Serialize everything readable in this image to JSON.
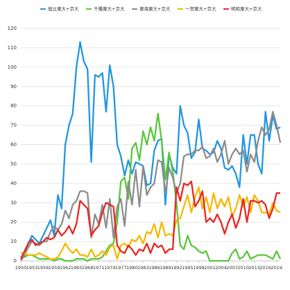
{
  "chart_data": {
    "type": "line",
    "x": [
      1950,
      1951,
      1952,
      1953,
      1954,
      1955,
      1956,
      1957,
      1958,
      1959,
      1960,
      1961,
      1962,
      1963,
      1964,
      1965,
      1966,
      1967,
      1968,
      1969,
      1970,
      1971,
      1972,
      1973,
      1974,
      1975,
      1976,
      1977,
      1978,
      1979,
      1980,
      1981,
      1982,
      1983,
      1984,
      1985,
      1986,
      1987,
      1988,
      1989,
      1990,
      1991,
      1992,
      1993,
      1994,
      1995,
      1996,
      1997,
      1998,
      1999,
      2000,
      2001,
      2002,
      2003,
      2004,
      2005,
      2006,
      2007,
      2008,
      2009,
      2010,
      2011,
      2012,
      2013,
      2014,
      2015,
      2016,
      2017,
      2018,
      2019,
      2020
    ],
    "xlim": [
      1950,
      2020
    ],
    "xticks": [
      1950,
      1953,
      1956,
      1959,
      1962,
      1965,
      1968,
      1971,
      1974,
      1977,
      1980,
      1983,
      1986,
      1989,
      1992,
      1995,
      1998,
      2001,
      2004,
      2007,
      2010,
      2013,
      2016,
      2019
    ],
    "ylim": [
      0,
      120
    ],
    "yticks": [
      0,
      10,
      20,
      30,
      40,
      50,
      60,
      70,
      80,
      90,
      100,
      110,
      120
    ],
    "grid": true,
    "legend": "top",
    "series": [
      {
        "name": "旭丘東大+京大",
        "color": "#2196e0",
        "values": [
          2,
          3,
          9,
          13,
          11,
          9,
          13,
          17,
          21,
          13,
          34,
          27,
          60,
          70,
          76,
          100,
          113,
          103,
          99,
          51,
          96,
          95,
          97,
          77,
          101,
          90,
          60,
          54,
          44,
          52,
          45,
          51,
          50,
          49,
          39,
          40,
          57,
          62,
          63,
          29,
          55,
          48,
          45,
          80,
          70,
          66,
          53,
          56,
          73,
          58,
          57,
          55,
          56,
          62,
          58,
          48,
          47,
          49,
          45,
          38,
          65,
          50,
          65,
          65,
          50,
          45,
          77,
          62,
          75,
          68,
          69
        ]
      },
      {
        "name": "千種東大+京大",
        "color": "#5ac63a",
        "values": [
          1,
          2,
          3,
          3,
          2,
          1,
          1,
          1,
          1,
          0,
          1,
          1,
          0,
          0,
          0,
          1,
          1,
          1,
          0,
          1,
          1,
          1,
          2,
          5,
          8,
          9,
          20,
          41,
          43,
          32,
          58,
          61,
          52,
          67,
          60,
          69,
          62,
          76,
          62,
          42,
          56,
          46,
          30,
          8,
          6,
          13,
          8,
          7,
          5,
          4,
          5,
          0,
          0,
          0,
          0,
          0,
          0,
          4,
          6,
          1,
          2,
          5,
          1,
          2,
          3,
          3,
          3,
          2,
          1,
          5,
          1
        ]
      },
      {
        "name": "東海東大+京大",
        "color": "#8c8c8c",
        "values": [
          0,
          3,
          7,
          10,
          9,
          8,
          10,
          10,
          15,
          18,
          16,
          19,
          26,
          22,
          29,
          31,
          36,
          36,
          35,
          12,
          24,
          19,
          29,
          17,
          32,
          12,
          28,
          32,
          18,
          41,
          29,
          47,
          28,
          49,
          34,
          38,
          40,
          52,
          51,
          35,
          48,
          43,
          35,
          40,
          54,
          55,
          55,
          57,
          57,
          59,
          53,
          54,
          58,
          51,
          55,
          62,
          50,
          55,
          58,
          55,
          57,
          46,
          55,
          51,
          62,
          69,
          65,
          68,
          77,
          70,
          61
        ]
      },
      {
        "name": "一宮東大+京大",
        "color": "#f5b800",
        "values": [
          4,
          4,
          3,
          3,
          3,
          4,
          3,
          2,
          1,
          1,
          2,
          5,
          9,
          6,
          4,
          6,
          3,
          3,
          2,
          6,
          2,
          3,
          5,
          3,
          7,
          8,
          1,
          8,
          9,
          7,
          11,
          10,
          13,
          9,
          15,
          14,
          19,
          12,
          20,
          13,
          14,
          13,
          21,
          22,
          28,
          34,
          25,
          33,
          38,
          27,
          33,
          25,
          35,
          27,
          32,
          28,
          33,
          23,
          27,
          34,
          28,
          33,
          25,
          34,
          31,
          25,
          25,
          24,
          30,
          26,
          25
        ]
      },
      {
        "name": "明和東大+京大",
        "color": "#e8261e",
        "values": [
          1,
          5,
          9,
          11,
          8,
          9,
          10,
          12,
          11,
          12,
          16,
          13,
          15,
          18,
          14,
          19,
          31,
          29,
          27,
          13,
          16,
          18,
          25,
          30,
          29,
          28,
          8,
          5,
          4,
          8,
          6,
          3,
          6,
          5,
          9,
          4,
          9,
          7,
          8,
          4,
          6,
          6,
          38,
          31,
          40,
          39,
          41,
          28,
          31,
          36,
          20,
          22,
          20,
          24,
          20,
          14,
          20,
          24,
          17,
          22,
          32,
          20,
          31,
          31,
          30,
          31,
          29,
          22,
          27,
          35,
          35
        ]
      }
    ]
  }
}
